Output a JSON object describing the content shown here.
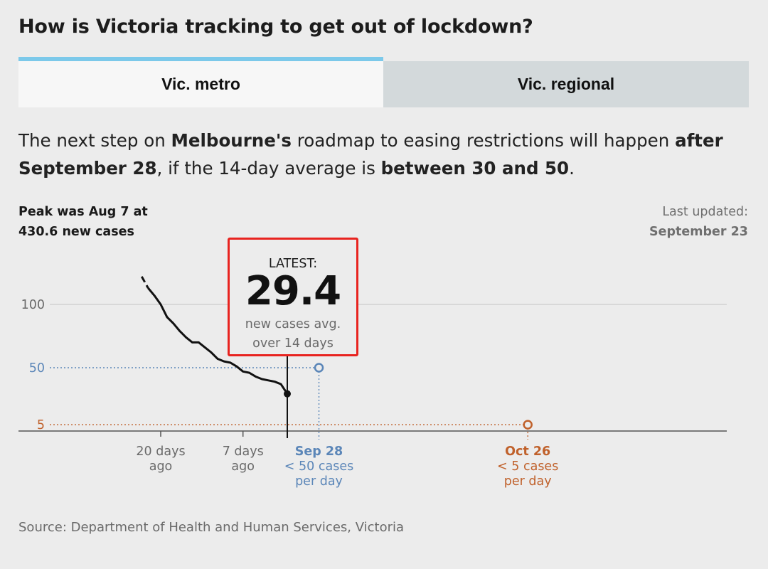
{
  "title": "How is Victoria tracking to get out of lockdown?",
  "tabs": [
    {
      "label": "Vic. metro",
      "active": true
    },
    {
      "label": "Vic. regional",
      "active": false
    }
  ],
  "intro": {
    "p1": "The next step on ",
    "b1": "Melbourne's",
    "p2": " roadmap to easing restrictions will happen ",
    "b2": "after September 28",
    "p3": ", if the 14-day average is ",
    "b3": "between 30 and 50",
    "p4": "."
  },
  "peak_note": {
    "line1": "Peak was Aug 7 at",
    "line2": "430.6 new cases"
  },
  "last_updated": {
    "label": "Last updated:",
    "date": "September 23"
  },
  "latest": {
    "label": "LATEST:",
    "value": "29.4",
    "sub1": "new cases avg.",
    "sub2": "over 14 days"
  },
  "source": "Source: Department of Health and Human Services, Victoria",
  "colors": {
    "line": "#111111",
    "target_blue": "#5b86b8",
    "target_orange": "#c0612b",
    "active_tab_accent": "#7cc9ea",
    "highlight_red": "#e8231f"
  },
  "chart_data": {
    "type": "line",
    "series": [
      {
        "values": [
          {
            "x": -23,
            "y": 122
          },
          {
            "x": -22,
            "y": 113
          },
          {
            "x": -21,
            "y": 107
          },
          {
            "x": -20,
            "y": 100
          },
          {
            "x": -19,
            "y": 90
          },
          {
            "x": -18,
            "y": 85
          },
          {
            "x": -17,
            "y": 79
          },
          {
            "x": -16,
            "y": 74
          },
          {
            "x": -15,
            "y": 70
          },
          {
            "x": -14,
            "y": 70
          },
          {
            "x": -13,
            "y": 66
          },
          {
            "x": -12,
            "y": 62
          },
          {
            "x": -11,
            "y": 57
          },
          {
            "x": -10,
            "y": 55
          },
          {
            "x": -9,
            "y": 54
          },
          {
            "x": -8,
            "y": 51
          },
          {
            "x": -7,
            "y": 47
          },
          {
            "x": -6,
            "y": 46
          },
          {
            "x": -5,
            "y": 43
          },
          {
            "x": -4,
            "y": 41
          },
          {
            "x": -3,
            "y": 40
          },
          {
            "x": -2,
            "y": 39
          },
          {
            "x": -1,
            "y": 37
          },
          {
            "x": 0,
            "y": 29.4
          }
        ]
      }
    ],
    "y_ticks": [
      {
        "value": 100,
        "label": "100"
      },
      {
        "value": 50,
        "label": "50"
      },
      {
        "value": 5,
        "label": "5"
      }
    ],
    "x_ticks": [
      {
        "value": -20,
        "label": [
          "20 days",
          "ago"
        ]
      },
      {
        "value": -7,
        "label": [
          "7 days",
          "ago"
        ]
      }
    ],
    "targets": [
      {
        "day": 5,
        "y": 50,
        "label": [
          "Sep 28",
          "< 50 cases",
          "per day"
        ],
        "color": "#5b86b8"
      },
      {
        "day": 38,
        "y": 5,
        "label": [
          "Oct 26",
          "< 5 cases",
          "per day"
        ],
        "color": "#c0612b"
      }
    ],
    "ylim": [
      0,
      130
    ],
    "grid": true
  }
}
